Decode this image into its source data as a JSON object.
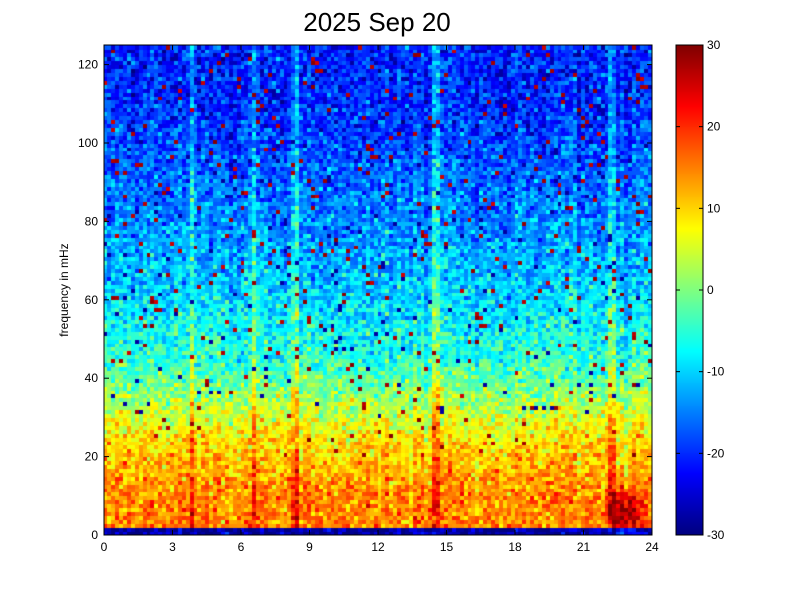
{
  "chart_data": {
    "type": "heatmap",
    "title": "2025 Sep 20",
    "xlabel": "",
    "ylabel": "frequency in mHz",
    "xlim": [
      0,
      24
    ],
    "ylim": [
      0,
      125
    ],
    "x_ticks": [
      "0",
      "3",
      "6",
      "9",
      "12",
      "15",
      "18",
      "21",
      "24"
    ],
    "y_ticks": [
      "0",
      "20",
      "40",
      "60",
      "80",
      "100",
      "120"
    ],
    "colorbar": {
      "min": -30,
      "max": 30,
      "ticks": [
        "-30",
        "-20",
        "-10",
        "0",
        "10",
        "20",
        "30"
      ],
      "colormap": "jet"
    },
    "grid": false,
    "legend": "none",
    "time_bins": 140,
    "freq_bins": 125,
    "description_free_levels": {
      "near_0_2mHz": -28,
      "band_2_10mHz": 15,
      "band_10_25mHz": 9,
      "band_25_45mHz": -5,
      "band_45_70mHz": -12,
      "band_70_125mHz": -20
    },
    "bright_streaks_hours": [
      3.9,
      6.6,
      8.4,
      14.6,
      22.3
    ],
    "hotspot": {
      "hour": 22.8,
      "freq_mHz": 6,
      "value": 28
    }
  },
  "colors": {
    "background": "#ffffff",
    "axis": "#000000"
  }
}
